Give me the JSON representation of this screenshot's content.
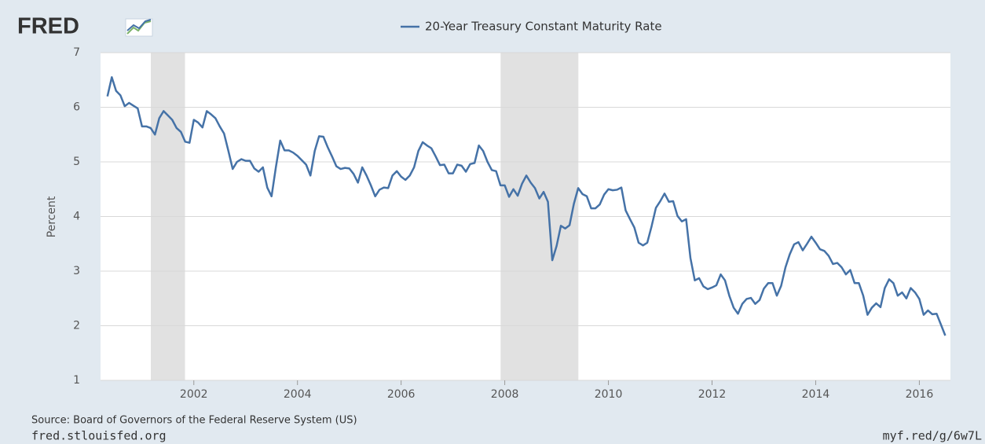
{
  "logo": "FRED",
  "chart_data": {
    "type": "line",
    "series": [
      {
        "name": "20-Year Treasury Constant Maturity Rate",
        "color": "#4572a7",
        "values": [
          6.2,
          6.55,
          6.3,
          6.22,
          6.02,
          6.08,
          6.03,
          5.98,
          5.65,
          5.65,
          5.62,
          5.5,
          5.8,
          5.93,
          5.85,
          5.77,
          5.62,
          5.55,
          5.37,
          5.35,
          5.77,
          5.72,
          5.63,
          5.93,
          5.87,
          5.8,
          5.65,
          5.52,
          5.2,
          4.87,
          5.0,
          5.05,
          5.02,
          5.02,
          4.88,
          4.82,
          4.9,
          4.53,
          4.37,
          4.9,
          5.39,
          5.21,
          5.21,
          5.17,
          5.11,
          5.03,
          4.95,
          4.75,
          5.2,
          5.47,
          5.46,
          5.27,
          5.1,
          4.92,
          4.87,
          4.89,
          4.88,
          4.78,
          4.62,
          4.9,
          4.75,
          4.57,
          4.37,
          4.49,
          4.53,
          4.52,
          4.75,
          4.83,
          4.73,
          4.67,
          4.75,
          4.9,
          5.2,
          5.36,
          5.3,
          5.25,
          5.1,
          4.94,
          4.95,
          4.79,
          4.79,
          4.95,
          4.93,
          4.82,
          4.96,
          4.98,
          5.3,
          5.2,
          5.0,
          4.85,
          4.83,
          4.57,
          4.57,
          4.36,
          4.5,
          4.38,
          4.6,
          4.75,
          4.62,
          4.52,
          4.33,
          4.45,
          4.27,
          3.2,
          3.46,
          3.83,
          3.78,
          3.84,
          4.23,
          4.52,
          4.41,
          4.37,
          4.15,
          4.15,
          4.22,
          4.4,
          4.5,
          4.48,
          4.49,
          4.53,
          4.11,
          3.95,
          3.8,
          3.52,
          3.47,
          3.52,
          3.82,
          4.16,
          4.28,
          4.42,
          4.27,
          4.28,
          4.01,
          3.91,
          3.95,
          3.24,
          2.83,
          2.87,
          2.72,
          2.67,
          2.7,
          2.74,
          2.94,
          2.83,
          2.55,
          2.33,
          2.22,
          2.4,
          2.49,
          2.51,
          2.4,
          2.47,
          2.68,
          2.78,
          2.78,
          2.55,
          2.73,
          3.07,
          3.31,
          3.49,
          3.53,
          3.38,
          3.5,
          3.63,
          3.52,
          3.4,
          3.37,
          3.28,
          3.13,
          3.15,
          3.07,
          2.94,
          3.02,
          2.78,
          2.78,
          2.55,
          2.2,
          2.33,
          2.41,
          2.34,
          2.69,
          2.85,
          2.78,
          2.55,
          2.61,
          2.5,
          2.69,
          2.61,
          2.49,
          2.2,
          2.28,
          2.21,
          2.22,
          2.02,
          1.82
        ]
      }
    ],
    "x": [
      2000.333,
      2000.417,
      2000.5,
      2000.583,
      2000.667,
      2000.75,
      2000.833,
      2000.917,
      2001,
      2001.083,
      2001.167,
      2001.25,
      2001.333,
      2001.417,
      2001.5,
      2001.583,
      2001.667,
      2001.75,
      2001.833,
      2001.917,
      2002,
      2002.083,
      2002.167,
      2002.25,
      2002.333,
      2002.417,
      2002.5,
      2002.583,
      2002.667,
      2002.75,
      2002.833,
      2002.917,
      2003,
      2003.083,
      2003.167,
      2003.25,
      2003.333,
      2003.417,
      2003.5,
      2003.583,
      2003.667,
      2003.75,
      2003.833,
      2003.917,
      2004,
      2004.083,
      2004.167,
      2004.25,
      2004.333,
      2004.417,
      2004.5,
      2004.583,
      2004.667,
      2004.75,
      2004.833,
      2004.917,
      2005,
      2005.083,
      2005.167,
      2005.25,
      2005.333,
      2005.417,
      2005.5,
      2005.583,
      2005.667,
      2005.75,
      2005.833,
      2005.917,
      2006,
      2006.083,
      2006.167,
      2006.25,
      2006.333,
      2006.417,
      2006.5,
      2006.583,
      2006.667,
      2006.75,
      2006.833,
      2006.917,
      2007,
      2007.083,
      2007.167,
      2007.25,
      2007.333,
      2007.417,
      2007.5,
      2007.583,
      2007.667,
      2007.75,
      2007.833,
      2007.917,
      2008,
      2008.083,
      2008.167,
      2008.25,
      2008.333,
      2008.417,
      2008.5,
      2008.583,
      2008.667,
      2008.75,
      2008.833,
      2008.917,
      2009,
      2009.083,
      2009.167,
      2009.25,
      2009.333,
      2009.417,
      2009.5,
      2009.583,
      2009.667,
      2009.75,
      2009.833,
      2009.917,
      2010,
      2010.083,
      2010.167,
      2010.25,
      2010.333,
      2010.417,
      2010.5,
      2010.583,
      2010.667,
      2010.75,
      2010.833,
      2010.917,
      2011,
      2011.083,
      2011.167,
      2011.25,
      2011.333,
      2011.417,
      2011.5,
      2011.583,
      2011.667,
      2011.75,
      2011.833,
      2011.917,
      2012,
      2012.083,
      2012.167,
      2012.25,
      2012.333,
      2012.417,
      2012.5,
      2012.583,
      2012.667,
      2012.75,
      2012.833,
      2012.917,
      2013,
      2013.083,
      2013.167,
      2013.25,
      2013.333,
      2013.417,
      2013.5,
      2013.583,
      2013.667,
      2013.75,
      2013.833,
      2013.917,
      2014,
      2014.083,
      2014.167,
      2014.25,
      2014.333,
      2014.417,
      2014.5,
      2014.583,
      2014.667,
      2014.75,
      2014.833,
      2014.917,
      2015,
      2015.083,
      2015.167,
      2015.25,
      2015.333,
      2015.417,
      2015.5,
      2015.583,
      2015.667,
      2015.75,
      2015.833,
      2015.917,
      2016,
      2016.083,
      2016.167,
      2016.25,
      2016.333,
      2016.417,
      2016.5
    ],
    "recessions": [
      [
        2001.17,
        2001.83
      ],
      [
        2007.92,
        2009.42
      ]
    ],
    "recession_color": "#e1e1e1",
    "xlim": [
      2000.2,
      2016.6
    ],
    "xticks": [
      2002,
      2004,
      2006,
      2008,
      2010,
      2012,
      2014,
      2016
    ],
    "ylim": [
      1,
      7
    ],
    "yticks": [
      1,
      2,
      3,
      4,
      5,
      6,
      7
    ],
    "ylabel": "Percent",
    "grid": true,
    "legend": "top",
    "source": "Source: Board of Governors of the Federal Reserve System (US)",
    "site": "fred.stlouisfed.org",
    "short_link": "myf.red/g/6w7L"
  }
}
